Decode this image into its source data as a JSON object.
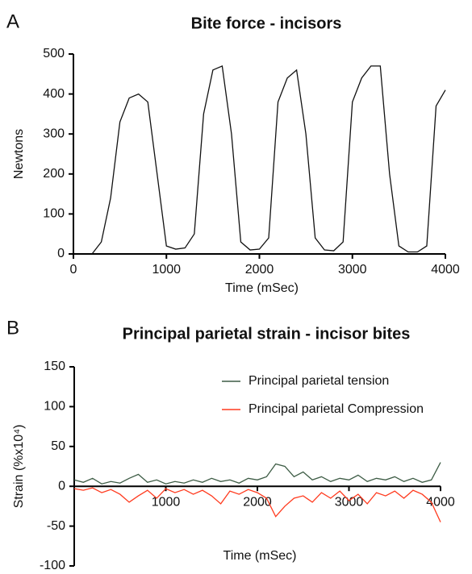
{
  "chart_data": [
    {
      "type": "line",
      "panel_label": "A",
      "title": "Bite force - incisors",
      "x_label": "Time (mSec)",
      "y_label": "Newtons",
      "xlim": [
        0,
        4000
      ],
      "xticks": [
        0,
        1000,
        2000,
        3000,
        4000
      ],
      "ylim": [
        0,
        500
      ],
      "yticks": [
        0,
        100,
        200,
        300,
        400,
        500
      ],
      "x": [
        200,
        300,
        400,
        500,
        600,
        700,
        800,
        900,
        1000,
        1100,
        1200,
        1300,
        1400,
        1500,
        1600,
        1700,
        1800,
        1900,
        2000,
        2100,
        2200,
        2300,
        2400,
        2500,
        2600,
        2700,
        2800,
        2900,
        3000,
        3100,
        3200,
        3300,
        3400,
        3500,
        3600,
        3700,
        3800,
        3900,
        4000
      ],
      "series": [
        {
          "name": null,
          "color": "#111111",
          "values": [
            0,
            30,
            140,
            330,
            390,
            400,
            380,
            200,
            20,
            12,
            15,
            50,
            350,
            460,
            470,
            300,
            30,
            10,
            12,
            40,
            380,
            440,
            460,
            300,
            40,
            10,
            8,
            30,
            380,
            440,
            470,
            470,
            200,
            20,
            5,
            5,
            20,
            370,
            410
          ]
        }
      ]
    },
    {
      "type": "line",
      "panel_label": "B",
      "title": "Principal parietal strain - incisor bites",
      "x_label": "Time (mSec)",
      "y_label": "Strain (%x10⁴)",
      "xlim": [
        0,
        4000
      ],
      "xticks": [
        1000,
        2000,
        3000,
        4000
      ],
      "ylim": [
        -100,
        150
      ],
      "yticks": [
        -100,
        -50,
        0,
        50,
        100,
        150
      ],
      "x": [
        0,
        100,
        200,
        300,
        400,
        500,
        600,
        700,
        800,
        900,
        1000,
        1100,
        1200,
        1300,
        1400,
        1500,
        1600,
        1700,
        1800,
        1900,
        2000,
        2100,
        2200,
        2300,
        2400,
        2500,
        2600,
        2700,
        2800,
        2900,
        3000,
        3100,
        3200,
        3300,
        3400,
        3500,
        3600,
        3700,
        3800,
        3900,
        4000
      ],
      "series": [
        {
          "name": "Principal parietal tension",
          "color": "#3d5c45",
          "values": [
            8,
            5,
            10,
            3,
            6,
            4,
            10,
            15,
            5,
            8,
            3,
            6,
            4,
            8,
            5,
            10,
            6,
            8,
            4,
            10,
            8,
            12,
            28,
            25,
            12,
            18,
            8,
            12,
            6,
            10,
            8,
            14,
            6,
            10,
            8,
            12,
            6,
            10,
            5,
            8,
            30
          ]
        },
        {
          "name": "Principal parietal Compression",
          "color": "#ff3a1e",
          "values": [
            -3,
            -5,
            -2,
            -8,
            -4,
            -10,
            -20,
            -12,
            -5,
            -15,
            -3,
            -8,
            -4,
            -10,
            -5,
            -12,
            -22,
            -6,
            -10,
            -4,
            -8,
            -15,
            -38,
            -25,
            -15,
            -12,
            -20,
            -8,
            -15,
            -6,
            -18,
            -10,
            -22,
            -8,
            -12,
            -6,
            -15,
            -5,
            -10,
            -20,
            -45
          ]
        }
      ]
    }
  ]
}
